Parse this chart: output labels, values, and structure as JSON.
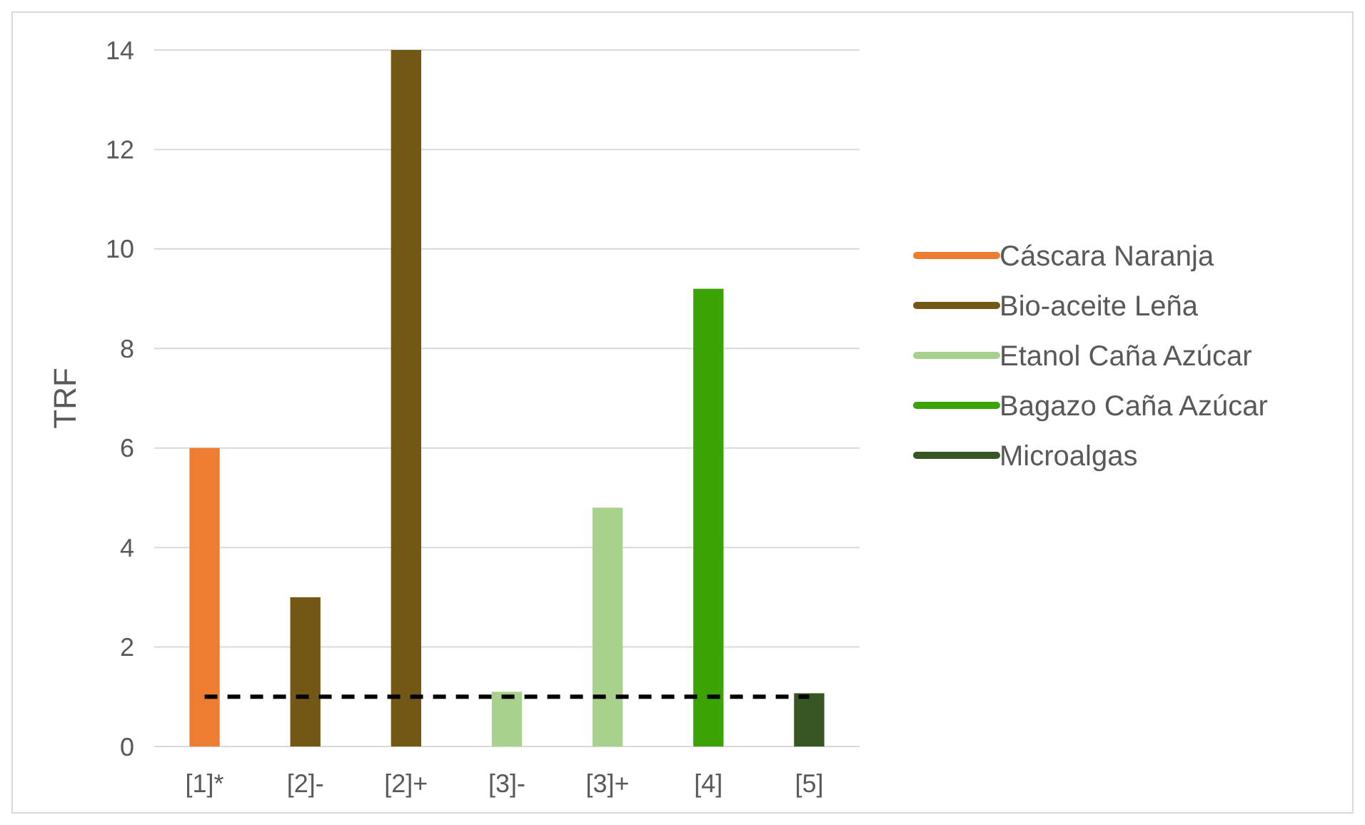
{
  "chart_data": {
    "type": "bar",
    "ylabel": "TRF",
    "categories": [
      "[1]*",
      "[2]-",
      "[2]+",
      "[3]-",
      "[3]+",
      "[4]",
      "[5]"
    ],
    "series": [
      {
        "name": "Cáscara Naranja",
        "color": "#ed7d31",
        "values": [
          6,
          null,
          null,
          null,
          null,
          null,
          null
        ]
      },
      {
        "name": "Bio-aceite Leña",
        "color": "#735714",
        "values": [
          null,
          3,
          14,
          null,
          null,
          null,
          null
        ]
      },
      {
        "name": "Etanol Caña Azúcar",
        "color": "#a9d18e",
        "values": [
          null,
          null,
          null,
          1.1,
          4.8,
          null,
          null
        ]
      },
      {
        "name": "Bagazo Caña Azúcar",
        "color": "#3ba404",
        "values": [
          null,
          null,
          null,
          null,
          null,
          9.2,
          null
        ]
      },
      {
        "name": "Microalgas",
        "color": "#375623",
        "values": [
          null,
          null,
          null,
          null,
          null,
          null,
          1.07
        ]
      }
    ],
    "ylim": [
      0,
      14
    ],
    "yticks": [
      0,
      2,
      4,
      6,
      8,
      10,
      12,
      14
    ],
    "grid": "y",
    "legend": "right",
    "ref_lines": [
      {
        "axis": "y",
        "value": 1,
        "color": "#000000",
        "line_style": "dashed"
      }
    ]
  }
}
